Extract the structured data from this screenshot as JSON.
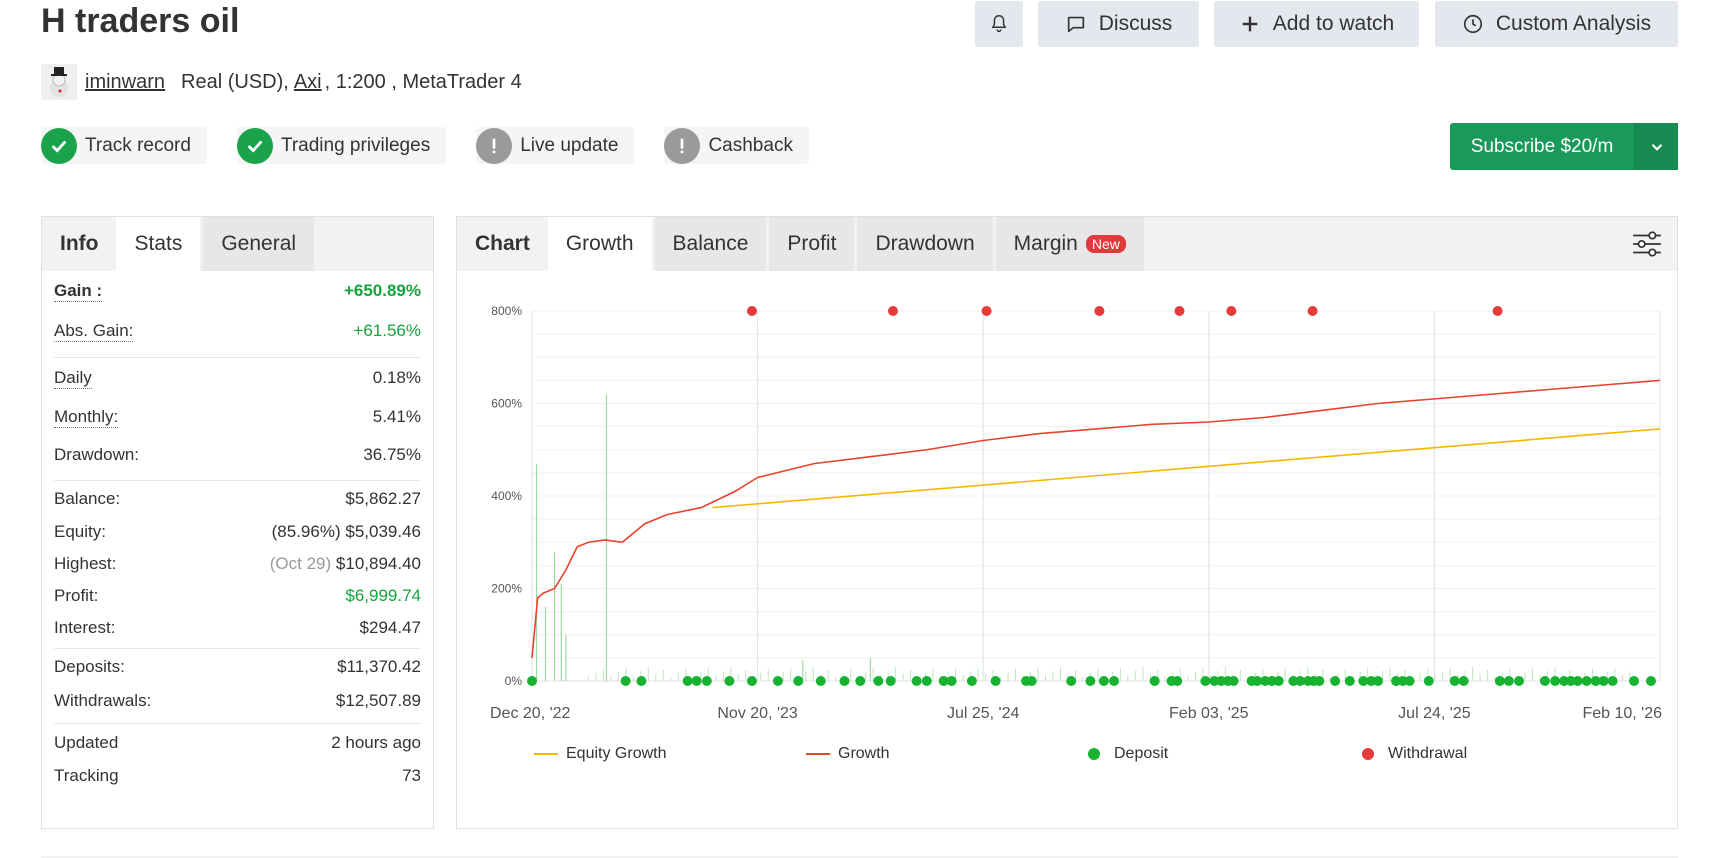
{
  "header": {
    "title": "H traders oil",
    "discuss_label": "Discuss",
    "watch_label": "Add to watch",
    "custom_label": "Custom Analysis"
  },
  "owner": {
    "username": "iminwarn",
    "account_prefix": "Real (USD),",
    "broker": "Axi",
    "account_suffix": ", 1:200 , MetaTrader 4"
  },
  "badges": [
    {
      "label": "Track record",
      "status": "ok"
    },
    {
      "label": "Trading privileges",
      "status": "ok"
    },
    {
      "label": "Live update",
      "status": "warn"
    },
    {
      "label": "Cashback",
      "status": "warn"
    }
  ],
  "subscribe": {
    "label": "Subscribe $20/m"
  },
  "info_panel": {
    "tabs": [
      "Info",
      "Stats",
      "General"
    ],
    "gain_label": "Gain :",
    "gain_value": "+650.89%",
    "abs_gain_label": "Abs. Gain:",
    "abs_gain_value": "+61.56%",
    "daily_label": "Daily",
    "daily_value": "0.18%",
    "monthly_label": "Monthly:",
    "monthly_value": "5.41%",
    "drawdown_label": "Drawdown:",
    "drawdown_value": "36.75%",
    "balance_label": "Balance:",
    "balance_value": "$5,862.27",
    "equity_label": "Equity:",
    "equity_pct": "(85.96%)",
    "equity_value": "$5,039.46",
    "highest_label": "Highest:",
    "highest_date": "(Oct 29)",
    "highest_value": "$10,894.40",
    "profit_label": "Profit:",
    "profit_value": "$6,999.74",
    "interest_label": "Interest:",
    "interest_value": "$294.47",
    "deposits_label": "Deposits:",
    "deposits_value": "$11,370.42",
    "withdrawals_label": "Withdrawals:",
    "withdrawals_value": "$12,507.89",
    "updated_label": "Updated",
    "updated_value": "2 hours ago",
    "tracking_label": "Tracking",
    "tracking_value": "73"
  },
  "chart_panel": {
    "tabs": [
      "Chart",
      "Growth",
      "Balance",
      "Profit",
      "Drawdown",
      "Margin"
    ],
    "new_badge": "New",
    "settings_icon": "sliders-icon"
  },
  "colors": {
    "growth": "#e8432c",
    "equity": "#f5b800",
    "deposit": "#17b330",
    "withdrawal": "#e63b3b",
    "subscribe": "#1a9a5a"
  },
  "chart_data": {
    "type": "line",
    "ylim": [
      0,
      800
    ],
    "yticks": [
      "0%",
      "200%",
      "400%",
      "600%",
      "800%"
    ],
    "xticks": [
      "Dec 20, '22",
      "Nov 20, '23",
      "Jul 25, '24",
      "Feb 03, '25",
      "Jul 24, '25",
      "Feb 10, '26"
    ],
    "legend": [
      "Equity Growth",
      "Growth",
      "Deposit",
      "Withdrawal"
    ],
    "series": [
      {
        "name": "Growth",
        "x": [
          0,
          0.005,
          0.01,
          0.02,
          0.03,
          0.04,
          0.05,
          0.065,
          0.08,
          0.09,
          0.1,
          0.12,
          0.15,
          0.18,
          0.2,
          0.25,
          0.3,
          0.35,
          0.4,
          0.45,
          0.5,
          0.55,
          0.6,
          0.65,
          0.7,
          0.75,
          0.8,
          0.85,
          0.9,
          0.95,
          1.0
        ],
        "values": [
          50,
          180,
          190,
          200,
          240,
          290,
          300,
          305,
          300,
          320,
          340,
          360,
          375,
          410,
          440,
          470,
          485,
          500,
          520,
          535,
          545,
          555,
          560,
          570,
          585,
          600,
          610,
          620,
          630,
          640,
          650
        ]
      },
      {
        "name": "Equity Growth",
        "x": [
          0.16,
          1.0
        ],
        "values": [
          375,
          545
        ]
      }
    ],
    "withdrawals_x": [
      0.195,
      0.32,
      0.403,
      0.503,
      0.574,
      0.62,
      0.692,
      0.856
    ],
    "deposits_x": [
      0,
      0.083,
      0.097,
      0.138,
      0.146,
      0.155,
      0.175,
      0.195,
      0.218,
      0.236,
      0.256,
      0.277,
      0.291,
      0.307,
      0.318,
      0.341,
      0.35,
      0.365,
      0.372,
      0.39,
      0.411,
      0.438,
      0.443,
      0.478,
      0.495,
      0.507,
      0.516,
      0.552,
      0.567,
      0.572,
      0.597,
      0.605,
      0.611,
      0.617,
      0.622,
      0.638,
      0.643,
      0.65,
      0.656,
      0.662,
      0.675,
      0.681,
      0.688,
      0.693,
      0.698,
      0.712,
      0.725,
      0.737,
      0.744,
      0.75,
      0.766,
      0.772,
      0.778,
      0.795,
      0.818,
      0.826,
      0.858,
      0.866,
      0.875,
      0.898,
      0.907,
      0.915,
      0.921,
      0.927,
      0.935,
      0.943,
      0.95,
      0.958,
      0.977,
      0.992
    ],
    "equity_spikes": [
      {
        "x": 0.004,
        "v": 470
      },
      {
        "x": 0.012,
        "v": 160
      },
      {
        "x": 0.02,
        "v": 280
      },
      {
        "x": 0.026,
        "v": 210
      },
      {
        "x": 0.03,
        "v": 100
      },
      {
        "x": 0.066,
        "v": 620
      },
      {
        "x": 0.3,
        "v": 50
      },
      {
        "x": 0.24,
        "v": 45
      }
    ]
  }
}
